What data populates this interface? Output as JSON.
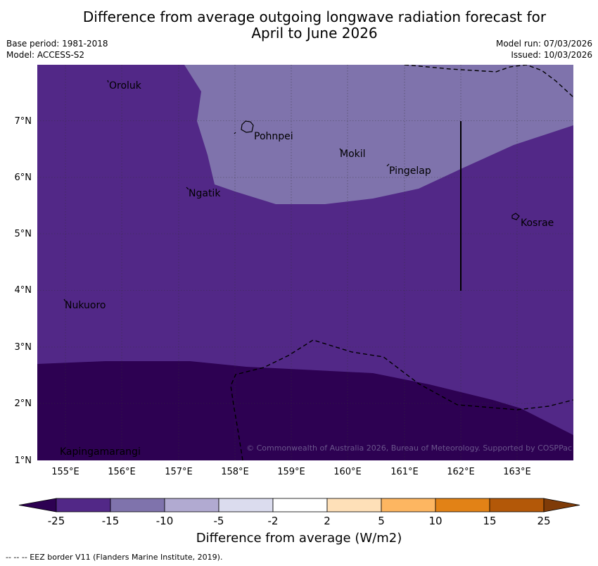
{
  "title": "Difference from average outgoing longwave radiation forecast for\nApril to June 2026",
  "title_line1": "Difference from average outgoing longwave radiation forecast for",
  "title_line2": "April to June 2026",
  "base_period": "Base period: 1981-2018",
  "model": "Model: ACCESS-S2",
  "model_run": "Model run: 07/03/2026",
  "issued": "Issued: 10/03/2026",
  "copyright": "© Commonwealth of Australia 2026, Bureau of Meteorology. Supported by COSPPac",
  "lat_labels": [
    "7°N",
    "6°N",
    "5°N",
    "4°N",
    "3°N",
    "2°N",
    "1°N"
  ],
  "lon_labels": [
    "155°E",
    "156°E",
    "157°E",
    "158°E",
    "159°E",
    "160°E",
    "161°E",
    "162°E",
    "163°E"
  ],
  "places": [
    "Oroluk",
    "Pohnpei",
    "Mokil",
    "Pingelap",
    "Ngatik",
    "Kosrae",
    "Nukuoro",
    "Kapingamarangi"
  ],
  "colorbar": {
    "ticks": [
      "-25",
      "-15",
      "-10",
      "-5",
      "-2",
      "2",
      "5",
      "10",
      "15",
      "25"
    ],
    "colors": [
      "#2d0152",
      "#522887",
      "#7f73ac",
      "#b1aad1",
      "#dbdcee",
      "#ffffff",
      "#fee0b8",
      "#fdb661",
      "#e28216",
      "#b35808",
      "#7f3b08"
    ],
    "label": "Difference from average (W/m2)"
  },
  "footer": "--  --  -- EEZ border V11 (Flanders Marine Institute, 2019)."
}
